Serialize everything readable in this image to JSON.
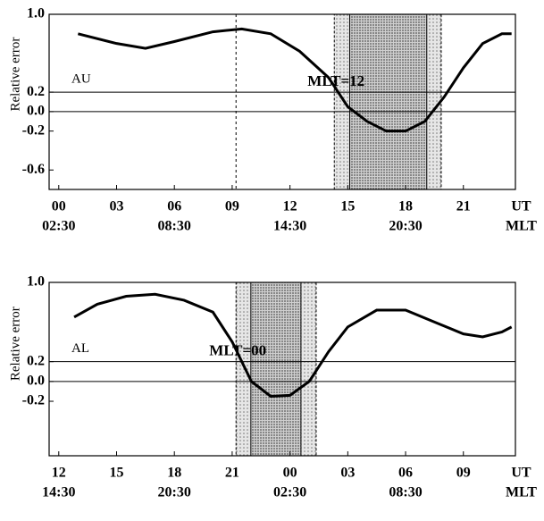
{
  "chart_data": [
    {
      "type": "line",
      "y_label": "Relative error",
      "annotation": "MLT=12",
      "x": [
        1,
        3,
        4.5,
        6,
        8,
        9.5,
        11,
        12.5,
        14,
        15,
        16,
        17,
        18,
        19,
        20,
        21,
        22,
        23,
        23.5
      ],
      "series": [
        {
          "name": "AU",
          "color": "#000000",
          "values": [
            0.8,
            0.7,
            0.65,
            0.72,
            0.82,
            0.85,
            0.8,
            0.62,
            0.35,
            0.05,
            -0.1,
            -0.2,
            -0.2,
            -0.1,
            0.15,
            0.45,
            0.7,
            0.8,
            0.8
          ]
        }
      ],
      "xlim": [
        -0.5,
        23.7
      ],
      "ylim": [
        -0.8,
        1.0
      ],
      "xticks": [
        {
          "value": 0,
          "label": "00"
        },
        {
          "value": 3,
          "label": "03"
        },
        {
          "value": 6,
          "label": "06"
        },
        {
          "value": 9,
          "label": "09"
        },
        12,
        15,
        18,
        21,
        {
          "value": 24,
          "label": "UT"
        }
      ],
      "mlt_ticks": [
        {
          "value": 0,
          "label": "02:30"
        },
        {
          "value": 6,
          "label": "08:30"
        },
        {
          "value": 12,
          "label": "14:30"
        },
        {
          "value": 18,
          "label": "20:30"
        },
        {
          "value": 24,
          "label": "MLT"
        }
      ],
      "yticks": [
        {
          "value": 1,
          "label": "1.0"
        },
        0.2,
        {
          "value": 0,
          "label": "0.0"
        },
        -0.2,
        -0.6
      ],
      "hlines": [
        0.2,
        0
      ],
      "vline": 9.2,
      "shade_outer": [
        14.3,
        19.85
      ],
      "shade_inner": [
        15.1,
        19.1
      ]
    },
    {
      "type": "line",
      "y_label": "Relative error",
      "annotation": "MLT=00",
      "x": [
        12.8,
        14,
        15.5,
        17,
        18.5,
        20,
        21,
        22,
        23,
        24,
        25,
        26,
        27,
        28.5,
        30,
        31.5,
        33,
        34,
        35,
        35.5
      ],
      "series": [
        {
          "name": "AL",
          "color": "#000000",
          "values": [
            0.65,
            0.78,
            0.86,
            0.88,
            0.82,
            0.7,
            0.4,
            0.0,
            -0.15,
            -0.14,
            0,
            0.3,
            0.55,
            0.72,
            0.72,
            0.6,
            0.48,
            0.45,
            0.5,
            0.55
          ]
        }
      ],
      "xlim": [
        11.5,
        35.7
      ],
      "ylim": [
        -0.75,
        1.0
      ],
      "xticks": [
        12,
        15,
        18,
        21,
        {
          "value": 24,
          "label": "00"
        },
        {
          "value": 27,
          "label": "03"
        },
        {
          "value": 30,
          "label": "06"
        },
        {
          "value": 33,
          "label": "09"
        },
        {
          "value": 36,
          "label": "UT"
        }
      ],
      "mlt_ticks": [
        {
          "value": 12,
          "label": "14:30"
        },
        {
          "value": 18,
          "label": "20:30"
        },
        {
          "value": 24,
          "label": "02:30"
        },
        {
          "value": 30,
          "label": "08:30"
        },
        {
          "value": 36,
          "label": "MLT"
        }
      ],
      "yticks": [
        {
          "value": 1,
          "label": "1.0"
        },
        0.2,
        {
          "value": 0,
          "label": "0.0"
        },
        -0.2
      ],
      "hlines": [
        0.2,
        0
      ],
      "shade_outer": [
        21.2,
        25.36
      ],
      "shade_inner": [
        21.97,
        24.57
      ]
    }
  ]
}
